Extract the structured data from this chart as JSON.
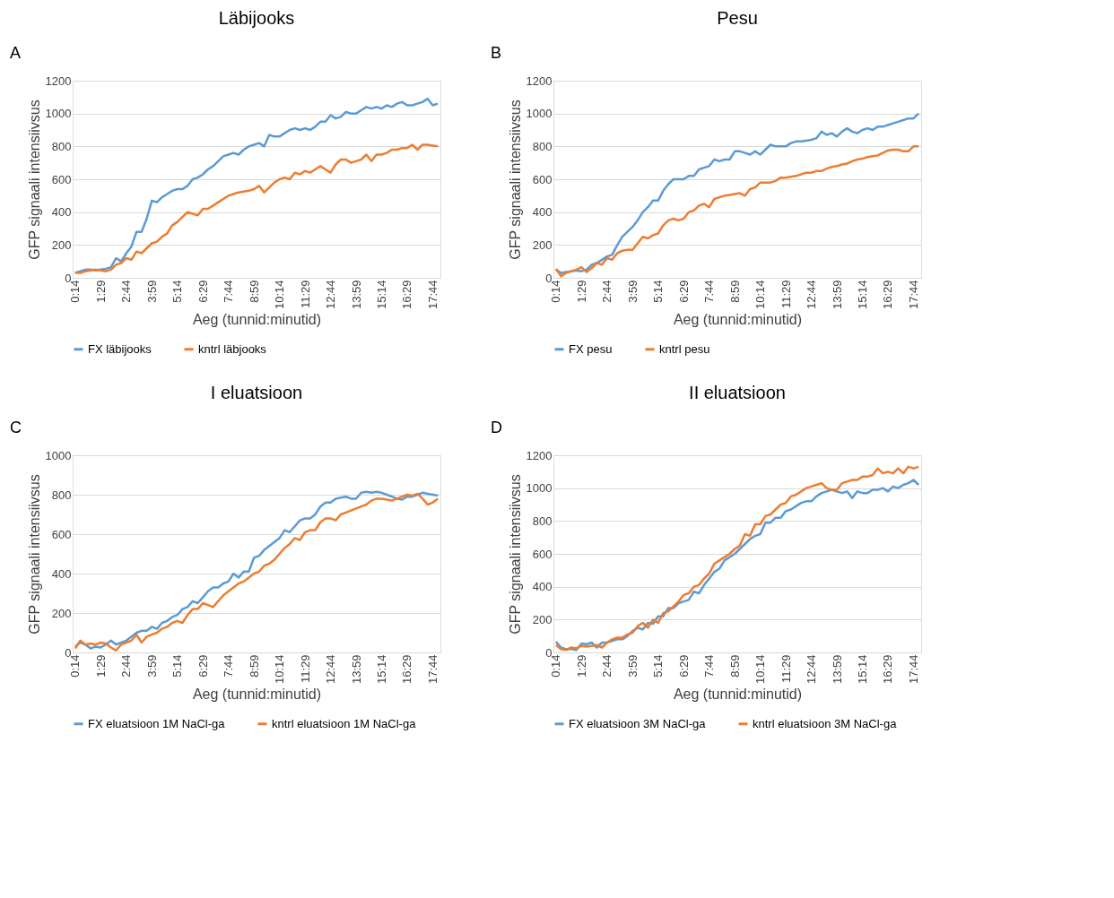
{
  "chart_data": [
    {
      "type": "line",
      "title": "Läbijooks",
      "annotations": [
        "A"
      ],
      "xlabel": "Aeg (tunnid:minutid)",
      "ylabel": "GFP signaali intensiivsus",
      "ylim": [
        0,
        1200
      ],
      "yticks": [
        0,
        200,
        400,
        600,
        800,
        1000,
        1200
      ],
      "grid": "y",
      "legend": "bottom",
      "categories": [
        "0:14",
        null,
        null,
        null,
        null,
        "1:29",
        null,
        null,
        null,
        null,
        "2:44",
        null,
        null,
        null,
        null,
        "3:59",
        null,
        null,
        null,
        null,
        "5:14",
        null,
        null,
        null,
        null,
        "6:29",
        null,
        null,
        null,
        null,
        "7:44",
        null,
        null,
        null,
        null,
        "8:59",
        null,
        null,
        null,
        null,
        "10:14",
        null,
        null,
        null,
        null,
        "11:29",
        null,
        null,
        null,
        null,
        "12:44",
        null,
        null,
        null,
        null,
        "13:59",
        null,
        null,
        null,
        null,
        "15:14",
        null,
        null,
        null,
        null,
        "16:29",
        null,
        null,
        null,
        null,
        "17:44",
        null
      ],
      "series": [
        {
          "name": "FX läbijooks",
          "color": "#5b9bd5",
          "values": [
            30,
            40,
            50,
            50,
            45,
            50,
            55,
            65,
            120,
            100,
            150,
            190,
            280,
            280,
            360,
            470,
            460,
            490,
            510,
            530,
            540,
            540,
            560,
            600,
            610,
            630,
            660,
            680,
            710,
            740,
            750,
            760,
            750,
            780,
            800,
            810,
            820,
            800,
            870,
            860,
            860,
            880,
            900,
            910,
            900,
            910,
            900,
            920,
            950,
            950,
            990,
            970,
            980,
            1010,
            1000,
            1000,
            1020,
            1040,
            1030,
            1040,
            1030,
            1050,
            1040,
            1060,
            1070,
            1050,
            1050,
            1060,
            1070,
            1090,
            1050,
            1060
          ]
        },
        {
          "name": "kntrl läbjooks",
          "color": "#ed7d31",
          "values": [
            30,
            30,
            40,
            45,
            50,
            45,
            40,
            50,
            80,
            90,
            120,
            110,
            160,
            150,
            180,
            210,
            220,
            250,
            270,
            320,
            340,
            370,
            400,
            390,
            380,
            420,
            420,
            440,
            460,
            480,
            500,
            510,
            520,
            525,
            530,
            540,
            560,
            520,
            550,
            580,
            600,
            610,
            600,
            640,
            630,
            650,
            640,
            660,
            680,
            660,
            640,
            690,
            720,
            720,
            700,
            710,
            720,
            750,
            710,
            750,
            750,
            760,
            780,
            780,
            790,
            790,
            810,
            780,
            810,
            810,
            805,
            800
          ]
        }
      ]
    },
    {
      "type": "line",
      "title": "Pesu",
      "annotations": [
        "B"
      ],
      "xlabel": "Aeg (tunnid:minutid)",
      "ylabel": "GFP signaali intensiivsus",
      "ylim": [
        0,
        1200
      ],
      "yticks": [
        0,
        200,
        400,
        600,
        800,
        1000,
        1200
      ],
      "grid": "y",
      "legend": "bottom",
      "categories": [
        "0:14",
        null,
        null,
        null,
        null,
        "1:29",
        null,
        null,
        null,
        null,
        "2:44",
        null,
        null,
        null,
        null,
        "3:59",
        null,
        null,
        null,
        null,
        "5:14",
        null,
        null,
        null,
        null,
        "6:29",
        null,
        null,
        null,
        null,
        "7:44",
        null,
        null,
        null,
        null,
        "8:59",
        null,
        null,
        null,
        null,
        "10:14",
        null,
        null,
        null,
        null,
        "11:29",
        null,
        null,
        null,
        null,
        "12:44",
        null,
        null,
        null,
        null,
        "13:59",
        null,
        null,
        null,
        null,
        "15:14",
        null,
        null,
        null,
        null,
        "16:29",
        null,
        null,
        null,
        null,
        "17:44",
        null
      ],
      "series": [
        {
          "name": "FX pesu",
          "color": "#5b9bd5",
          "values": [
            50,
            30,
            35,
            40,
            45,
            40,
            50,
            80,
            90,
            110,
            130,
            140,
            200,
            250,
            280,
            310,
            350,
            400,
            430,
            470,
            470,
            530,
            570,
            600,
            600,
            600,
            620,
            620,
            660,
            670,
            680,
            720,
            710,
            720,
            720,
            770,
            770,
            760,
            750,
            770,
            750,
            780,
            810,
            800,
            800,
            800,
            820,
            830,
            830,
            835,
            840,
            850,
            890,
            870,
            880,
            860,
            890,
            910,
            890,
            880,
            900,
            910,
            900,
            920,
            920,
            930,
            940,
            950,
            960,
            970,
            970,
            1000
          ]
        },
        {
          "name": "kntrl pesu",
          "color": "#ed7d31",
          "values": [
            55,
            10,
            30,
            40,
            50,
            65,
            35,
            60,
            90,
            80,
            120,
            110,
            150,
            165,
            170,
            170,
            210,
            250,
            240,
            260,
            270,
            320,
            350,
            360,
            350,
            360,
            400,
            410,
            440,
            450,
            430,
            480,
            490,
            500,
            505,
            510,
            515,
            500,
            540,
            550,
            580,
            580,
            580,
            590,
            610,
            610,
            615,
            620,
            630,
            640,
            640,
            650,
            650,
            665,
            675,
            680,
            690,
            695,
            710,
            720,
            725,
            735,
            740,
            745,
            760,
            775,
            780,
            780,
            770,
            770,
            800,
            800
          ]
        }
      ]
    },
    {
      "type": "line",
      "title": "I eluatsioon",
      "annotations": [
        "C"
      ],
      "xlabel": "Aeg (tunnid:minutid)",
      "ylabel": "GFP signaali intensiivsus",
      "ylim": [
        0,
        1000
      ],
      "yticks": [
        0,
        200,
        400,
        600,
        800,
        1000
      ],
      "grid": "y",
      "legend": "bottom",
      "categories": [
        "0:14",
        null,
        null,
        null,
        null,
        "1:29",
        null,
        null,
        null,
        null,
        "2:44",
        null,
        null,
        null,
        null,
        "3:59",
        null,
        null,
        null,
        null,
        "5:14",
        null,
        null,
        null,
        null,
        "6:29",
        null,
        null,
        null,
        null,
        "7:44",
        null,
        null,
        null,
        null,
        "8:59",
        null,
        null,
        null,
        null,
        "10:14",
        null,
        null,
        null,
        null,
        "11:29",
        null,
        null,
        null,
        null,
        "12:44",
        null,
        null,
        null,
        null,
        "13:59",
        null,
        null,
        null,
        null,
        "15:14",
        null,
        null,
        null,
        null,
        "16:29",
        null,
        null,
        null,
        null,
        "17:44",
        null
      ],
      "series": [
        {
          "name": "FX eluatsioon 1M NaCl-ga",
          "color": "#5b9bd5",
          "values": [
            30,
            50,
            40,
            20,
            30,
            25,
            40,
            60,
            40,
            50,
            60,
            80,
            100,
            110,
            110,
            130,
            120,
            150,
            160,
            180,
            190,
            220,
            230,
            260,
            250,
            280,
            310,
            330,
            330,
            350,
            360,
            400,
            380,
            410,
            410,
            480,
            490,
            520,
            540,
            560,
            580,
            620,
            610,
            640,
            670,
            680,
            680,
            700,
            740,
            760,
            760,
            780,
            785,
            790,
            780,
            780,
            810,
            815,
            810,
            815,
            810,
            800,
            790,
            780,
            775,
            790,
            790,
            800,
            810,
            805,
            800,
            795
          ]
        },
        {
          "name": "kntrl eluatsioon 1M NaCl-ga",
          "color": "#ed7d31",
          "values": [
            20,
            60,
            40,
            45,
            40,
            50,
            45,
            25,
            10,
            40,
            50,
            60,
            90,
            50,
            80,
            90,
            100,
            120,
            130,
            150,
            160,
            150,
            190,
            220,
            220,
            250,
            240,
            230,
            260,
            290,
            310,
            330,
            350,
            360,
            380,
            400,
            410,
            440,
            450,
            470,
            500,
            530,
            550,
            580,
            570,
            610,
            620,
            620,
            660,
            680,
            680,
            670,
            700,
            710,
            720,
            730,
            740,
            750,
            770,
            780,
            780,
            775,
            770,
            780,
            790,
            800,
            795,
            805,
            780,
            750,
            760,
            780
          ]
        }
      ]
    },
    {
      "type": "line",
      "title": "II eluatsioon",
      "annotations": [
        "D"
      ],
      "xlabel": "Aeg (tunnid:minutid)",
      "ylabel": "GFP signaali intensiivsus",
      "ylim": [
        0,
        1200
      ],
      "yticks": [
        0,
        200,
        400,
        600,
        800,
        1000,
        1200
      ],
      "grid": "y",
      "legend": "bottom",
      "categories": [
        "0:14",
        null,
        null,
        null,
        null,
        "1:29",
        null,
        null,
        null,
        null,
        "2:44",
        null,
        null,
        null,
        null,
        "3:59",
        null,
        null,
        null,
        null,
        "5:14",
        null,
        null,
        null,
        null,
        "6:29",
        null,
        null,
        null,
        null,
        "7:44",
        null,
        null,
        null,
        null,
        "8:59",
        null,
        null,
        null,
        null,
        "10:14",
        null,
        null,
        null,
        null,
        "11:29",
        null,
        null,
        null,
        null,
        "12:44",
        null,
        null,
        null,
        null,
        "13:59",
        null,
        null,
        null,
        null,
        "15:14",
        null,
        null,
        null,
        null,
        "16:29",
        null,
        null,
        null,
        null,
        "17:44",
        null
      ],
      "series": [
        {
          "name": "FX eluatsioon 3M NaCl-ga",
          "color": "#5b9bd5",
          "values": [
            65,
            30,
            20,
            20,
            15,
            55,
            50,
            60,
            30,
            60,
            60,
            70,
            80,
            80,
            100,
            130,
            150,
            140,
            180,
            175,
            220,
            220,
            270,
            270,
            300,
            310,
            320,
            370,
            360,
            410,
            450,
            490,
            510,
            560,
            580,
            600,
            630,
            660,
            690,
            710,
            720,
            790,
            790,
            820,
            820,
            860,
            870,
            890,
            910,
            920,
            920,
            950,
            970,
            980,
            990,
            980,
            970,
            980,
            940,
            980,
            970,
            970,
            990,
            990,
            1000,
            980,
            1010,
            1000,
            1020,
            1030,
            1050,
            1020
          ]
        },
        {
          "name": "kntrl eluatsioon 3M NaCl-ga",
          "color": "#ed7d31",
          "values": [
            45,
            20,
            15,
            30,
            25,
            40,
            35,
            40,
            45,
            30,
            60,
            80,
            90,
            90,
            110,
            120,
            160,
            180,
            150,
            200,
            180,
            240,
            250,
            280,
            310,
            350,
            360,
            400,
            410,
            450,
            480,
            540,
            560,
            580,
            600,
            630,
            650,
            720,
            710,
            780,
            780,
            830,
            840,
            870,
            900,
            910,
            950,
            960,
            980,
            1000,
            1010,
            1020,
            1030,
            1000,
            990,
            990,
            1030,
            1040,
            1050,
            1050,
            1070,
            1070,
            1080,
            1120,
            1090,
            1100,
            1090,
            1120,
            1090,
            1130,
            1120,
            1130
          ]
        }
      ]
    }
  ]
}
